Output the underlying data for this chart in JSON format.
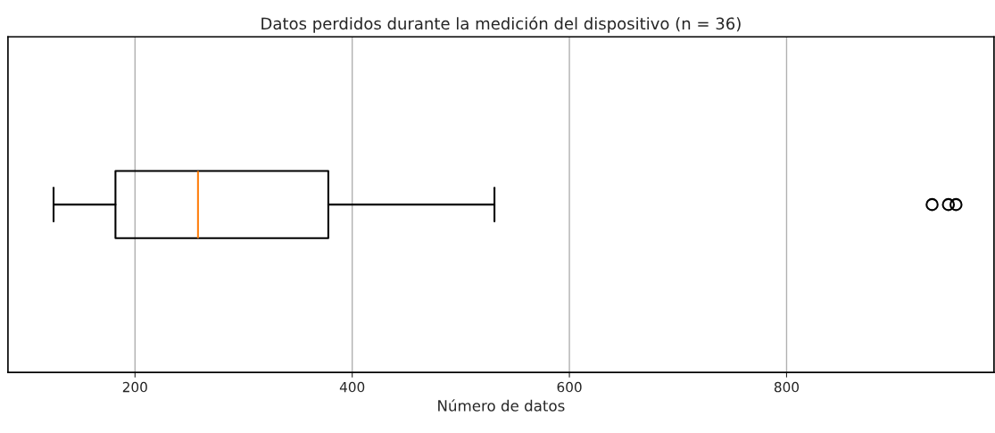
{
  "chart_data": {
    "type": "box",
    "orientation": "horizontal",
    "title": "Datos perdidos durante la medición del dispositivo (n = 36)",
    "xlabel": "Número de datos",
    "categories": [
      null
    ],
    "boxes": [
      {
        "low": 125,
        "q1": 182,
        "median": 258,
        "q3": 378,
        "high": 531,
        "outliers": [
          934,
          949,
          956
        ]
      }
    ],
    "colors": [
      "#000000"
    ],
    "xlim": [
      83,
      991
    ],
    "xticks": [
      200,
      400,
      600,
      800
    ],
    "grid": "x",
    "tick_labels": "x"
  }
}
